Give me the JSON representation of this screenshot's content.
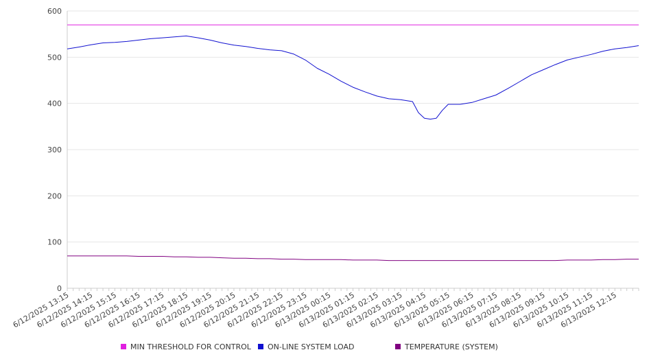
{
  "chart_data": {
    "type": "line",
    "title": "",
    "xlabel": "",
    "ylabel": "",
    "ylim": [
      0,
      600
    ],
    "yticks": [
      0,
      100,
      200,
      300,
      400,
      500,
      600
    ],
    "grid": true,
    "legend_position": "bottom",
    "x_tick_labels": [
      "6/12/2025 13:15",
      "6/12/2025 14:15",
      "6/12/2025 15:15",
      "6/12/2025 16:15",
      "6/12/2025 17:15",
      "6/12/2025 18:15",
      "6/12/2025 19:15",
      "6/12/2025 20:15",
      "6/12/2025 21:15",
      "6/12/2025 22:15",
      "6/12/2025 23:15",
      "6/13/2025 00:15",
      "6/13/2025 01:15",
      "6/13/2025 02:15",
      "6/13/2025 03:15",
      "6/13/2025 04:15",
      "6/13/2025 05:15",
      "6/13/2025 06:15",
      "6/13/2025 07:15",
      "6/13/2025 08:15",
      "6/13/2025 09:15",
      "6/13/2025 10:15",
      "6/13/2025 11:15",
      "6/13/2025 12:15"
    ],
    "x_hours": [
      0,
      0.5,
      1,
      1.5,
      2,
      2.5,
      3,
      3.5,
      4,
      4.5,
      5,
      5.5,
      6,
      6.5,
      7,
      7.5,
      8,
      8.5,
      9,
      9.5,
      10,
      10.5,
      11,
      11.5,
      12,
      12.5,
      13,
      13.5,
      14,
      14.25,
      14.5,
      14.75,
      15,
      15.25,
      15.5,
      15.75,
      16,
      16.5,
      17,
      17.5,
      18,
      18.5,
      19,
      19.5,
      20,
      20.5,
      21,
      21.5,
      22,
      22.5,
      23,
      23.5,
      24
    ],
    "series": [
      {
        "name": "MIN THRESHOLD FOR CONTROL",
        "color": "#e020e0",
        "values": [
          570,
          570,
          570,
          570,
          570,
          570,
          570,
          570,
          570,
          570,
          570,
          570,
          570,
          570,
          570,
          570,
          570,
          570,
          570,
          570,
          570,
          570,
          570,
          570,
          570,
          570,
          570,
          570,
          570,
          570,
          570,
          570,
          570,
          570,
          570,
          570,
          570,
          570,
          570,
          570,
          570,
          570,
          570,
          570,
          570,
          570,
          570,
          570,
          570,
          570,
          570,
          570,
          570
        ]
      },
      {
        "name": "ON-LINE SYSTEM LOAD",
        "color": "#1010d0",
        "values": [
          518,
          522,
          527,
          531,
          532,
          534,
          537,
          540,
          542,
          544,
          546,
          542,
          537,
          531,
          526,
          523,
          519,
          516,
          514,
          507,
          494,
          476,
          463,
          448,
          435,
          425,
          416,
          410,
          408,
          406,
          404,
          380,
          368,
          366,
          368,
          385,
          398,
          398,
          402,
          410,
          418,
          432,
          447,
          462,
          473,
          484,
          494,
          500,
          506,
          513,
          518,
          521,
          525
        ]
      },
      {
        "name": "TEMPERATURE (SYSTEM)",
        "color": "#800080",
        "values": [
          70,
          70,
          70,
          70,
          70,
          70,
          69,
          69,
          69,
          68,
          68,
          67,
          67,
          66,
          65,
          65,
          64,
          64,
          63,
          63,
          62,
          62,
          62,
          62,
          61,
          61,
          61,
          60,
          60,
          60,
          60,
          60,
          60,
          60,
          60,
          60,
          60,
          60,
          60,
          60,
          60,
          60,
          60,
          60,
          60,
          60,
          61,
          61,
          61,
          62,
          62,
          63,
          63
        ]
      }
    ]
  }
}
